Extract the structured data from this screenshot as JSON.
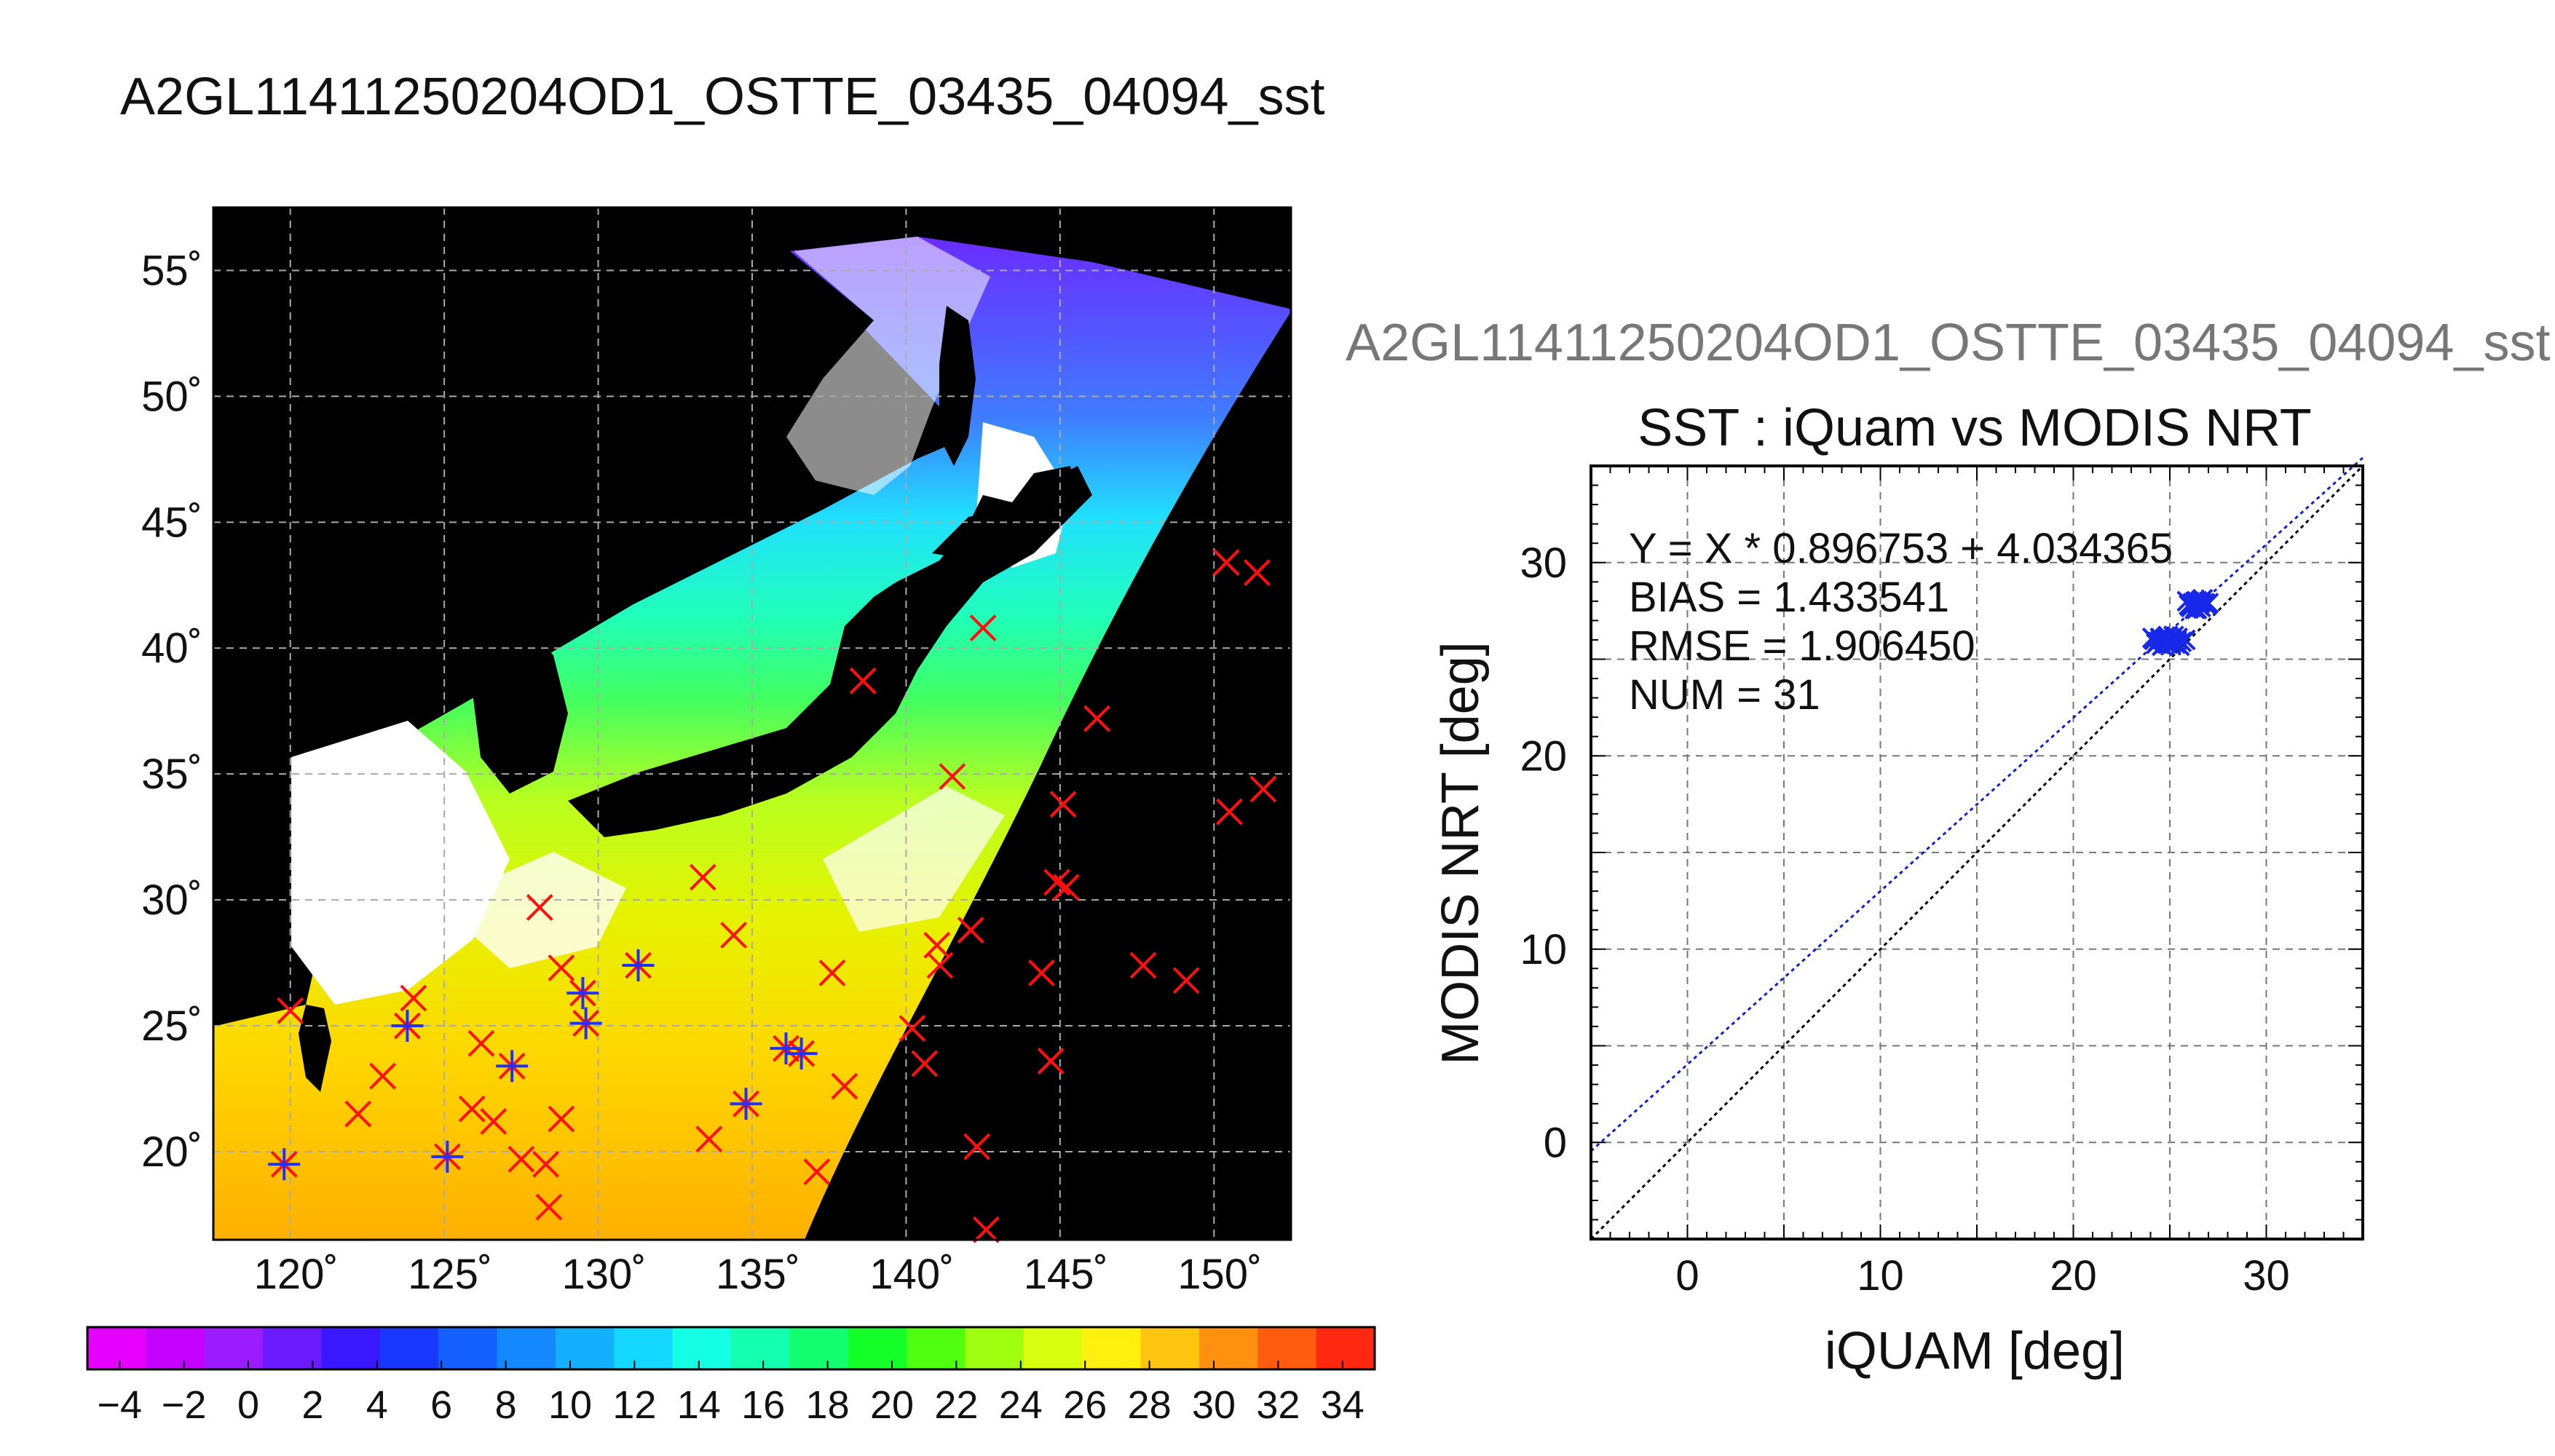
{
  "main_title": "A2GL11411250204OD1_OSTTE_03435_04094_sst",
  "secondary_title": "A2GL11411250204OD1_OSTTE_03435_04094_sst",
  "chart_data": [
    {
      "type": "map",
      "xlim": [
        117.5,
        152.5
      ],
      "ylim": [
        16.5,
        57.5
      ],
      "x_ticks": [
        120,
        125,
        130,
        135,
        140,
        145,
        150
      ],
      "y_ticks": [
        20,
        25,
        30,
        35,
        40,
        45,
        50,
        55
      ],
      "x_tick_labels": [
        "120˚",
        "125˚",
        "130˚",
        "135˚",
        "140˚",
        "145˚",
        "150˚"
      ],
      "y_tick_labels": [
        "20˚",
        "25˚",
        "30˚",
        "35˚",
        "40˚",
        "45˚",
        "50˚",
        "55˚"
      ],
      "grid": true,
      "colorbar": {
        "min": -5,
        "max": 35,
        "tick_values": [
          -4,
          -2,
          0,
          2,
          4,
          6,
          8,
          10,
          12,
          14,
          16,
          18,
          20,
          22,
          24,
          26,
          28,
          30,
          32,
          34
        ],
        "tick_labels": [
          "−4",
          "−2",
          "0",
          "2",
          "4",
          "6",
          "8",
          "10",
          "12",
          "14",
          "16",
          "18",
          "20",
          "22",
          "24",
          "26",
          "28",
          "30",
          "32",
          "34"
        ],
        "colors": [
          "#e600ff",
          "#c400ff",
          "#9a1cff",
          "#6a1cff",
          "#3a18ff",
          "#1838ff",
          "#1460ff",
          "#1488ff",
          "#14b0ff",
          "#14d8ff",
          "#14ffe4",
          "#14ffb0",
          "#14ff70",
          "#14ff28",
          "#50ff10",
          "#a0ff10",
          "#d8ff10",
          "#fff010",
          "#ffc410",
          "#ff9010",
          "#ff5c10",
          "#ff2810"
        ]
      },
      "red_markers": [
        [
          120,
          25.6
        ],
        [
          119.8,
          19.5
        ],
        [
          124,
          26.1
        ],
        [
          122.2,
          21.5
        ],
        [
          123,
          23
        ],
        [
          123.8,
          25
        ],
        [
          125.1,
          19.8
        ],
        [
          126.2,
          24.3
        ],
        [
          125.9,
          21.7
        ],
        [
          126.6,
          21.2
        ],
        [
          127.2,
          23.4
        ],
        [
          127.5,
          19.7
        ],
        [
          128.1,
          29.7
        ],
        [
          128.3,
          19.5
        ],
        [
          128.4,
          17.8
        ],
        [
          128.8,
          21.3
        ],
        [
          128.8,
          27.3
        ],
        [
          129.5,
          26.3
        ],
        [
          129.6,
          25.1
        ],
        [
          131.3,
          27.4
        ],
        [
          133.4,
          30.9
        ],
        [
          133.6,
          20.5
        ],
        [
          134.4,
          28.6
        ],
        [
          134.8,
          21.9
        ],
        [
          136.1,
          24.1
        ],
        [
          136.6,
          23.9
        ],
        [
          137.1,
          19.2
        ],
        [
          137.6,
          27.1
        ],
        [
          138,
          22.6
        ],
        [
          138.6,
          38.7
        ],
        [
          140.2,
          24.9
        ],
        [
          140.6,
          23.5
        ],
        [
          141,
          28.2
        ],
        [
          141.1,
          27.4
        ],
        [
          141.5,
          34.9
        ],
        [
          142.1,
          28.8
        ],
        [
          142.3,
          20.2
        ],
        [
          142.5,
          40.8
        ],
        [
          142.6,
          16.9
        ],
        [
          144.4,
          27.1
        ],
        [
          144.7,
          23.6
        ],
        [
          144.9,
          30.7
        ],
        [
          145.1,
          33.8
        ],
        [
          145.2,
          30.5
        ],
        [
          146.2,
          37.2
        ],
        [
          147.7,
          27.4
        ],
        [
          149.1,
          26.8
        ],
        [
          150.4,
          43.4
        ],
        [
          150.5,
          33.5
        ],
        [
          151.4,
          43
        ],
        [
          151.6,
          34.4
        ]
      ],
      "blue_star_markers": [
        [
          119.8,
          19.5
        ],
        [
          123.8,
          25
        ],
        [
          125.1,
          19.8
        ],
        [
          127.2,
          23.4
        ],
        [
          129.5,
          26.3
        ],
        [
          129.6,
          25.1
        ],
        [
          131.3,
          27.4
        ],
        [
          134.8,
          21.9
        ],
        [
          136.1,
          24.1
        ],
        [
          136.6,
          23.9
        ]
      ]
    },
    {
      "type": "scatter",
      "title": "SST : iQuam vs MODIS NRT",
      "xlabel": "iQUAM [deg]",
      "ylabel": "MODIS NRT [deg]",
      "xlim": [
        -5,
        35
      ],
      "ylim": [
        -5,
        35
      ],
      "x_ticks": [
        0,
        10,
        20,
        30
      ],
      "y_ticks": [
        0,
        10,
        20,
        30
      ],
      "grid": true,
      "regression": {
        "slope": 0.896753,
        "intercept": 4.034365
      },
      "stats": [
        "Y = X * 0.896753 + 4.034365",
        "BIAS = 1.433541",
        "RMSE = 1.906450",
        "NUM = 31"
      ],
      "points": [
        [
          24.2,
          26
        ],
        [
          24.4,
          25.9
        ],
        [
          24.5,
          26.1
        ],
        [
          24.7,
          26
        ],
        [
          24.9,
          25.8
        ],
        [
          25.1,
          26
        ],
        [
          25.3,
          25.8
        ],
        [
          25.4,
          26.1
        ],
        [
          24.3,
          25.8
        ],
        [
          24.8,
          26.1
        ],
        [
          25.6,
          25.9
        ],
        [
          24.6,
          25.7
        ],
        [
          25.2,
          26.2
        ],
        [
          26,
          27.8
        ],
        [
          26.2,
          27.9
        ],
        [
          26.4,
          28
        ],
        [
          26.6,
          27.7
        ],
        [
          26.8,
          27.9
        ],
        [
          26.3,
          27.6
        ],
        [
          26.7,
          28.1
        ],
        [
          25.9,
          28
        ],
        [
          26.5,
          27.8
        ],
        [
          27,
          27.9
        ],
        [
          24.1,
          26.1
        ],
        [
          25.5,
          25.7
        ],
        [
          26.1,
          27.7
        ],
        [
          26.9,
          27.8
        ],
        [
          24.9,
          26.2
        ],
        [
          25.8,
          26
        ],
        [
          26.4,
          27.6
        ],
        [
          26.6,
          28
        ]
      ]
    }
  ]
}
